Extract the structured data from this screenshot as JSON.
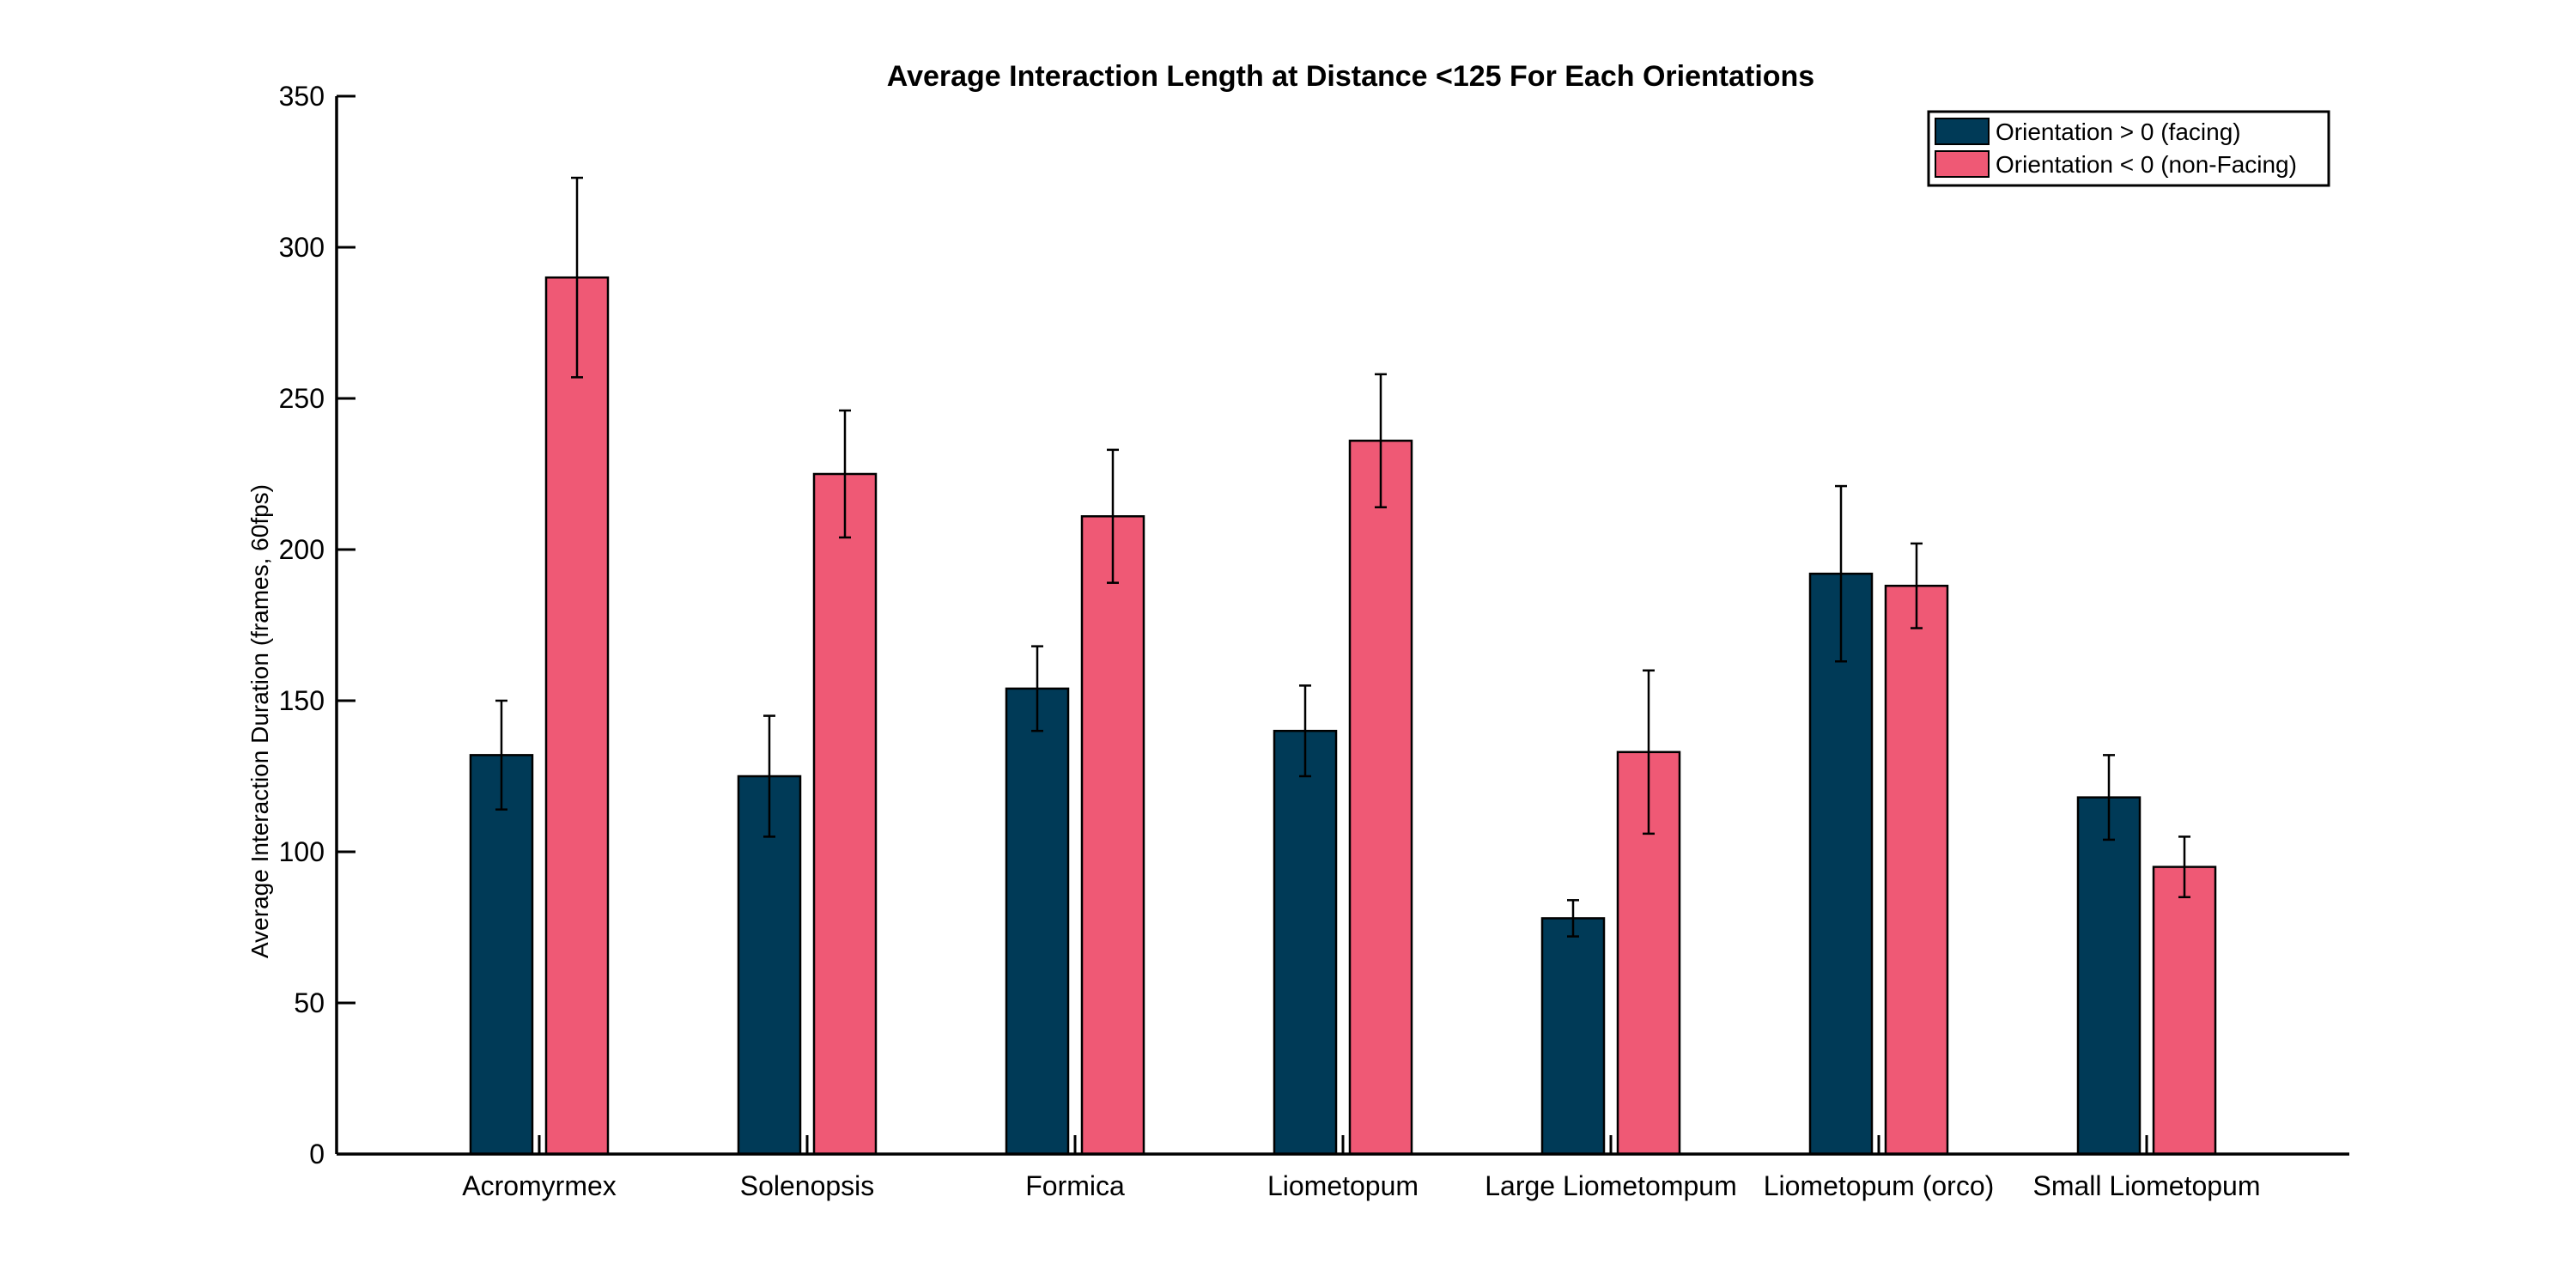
{
  "chart_data": {
    "type": "bar",
    "title": "Average Interaction Length at Distance <125 For Each Orientations",
    "xlabel": "",
    "ylabel": "Average Interaction Duration (frames, 60fps)",
    "ylim": [
      0,
      350
    ],
    "yticks": [
      0,
      50,
      100,
      150,
      200,
      250,
      300,
      350
    ],
    "grid": false,
    "legend_position": "top-right",
    "categories": [
      "Acromyrmex",
      "Solenopsis",
      "Formica",
      "Liometopum",
      "Large Liometompum",
      "Liometopum (orco)",
      "Small Liometopum"
    ],
    "series": [
      {
        "name": "Orientation > 0 (facing)",
        "color": "#003a57",
        "values": [
          132,
          125,
          154,
          140,
          78,
          192,
          118
        ],
        "error": [
          18,
          20,
          14,
          15,
          6,
          29,
          14
        ]
      },
      {
        "name": "Orientation < 0 (non-Facing)",
        "color": "#ef5975",
        "values": [
          290,
          225,
          211,
          236,
          133,
          188,
          95
        ],
        "error": [
          33,
          21,
          22,
          22,
          27,
          14,
          10
        ]
      }
    ]
  }
}
